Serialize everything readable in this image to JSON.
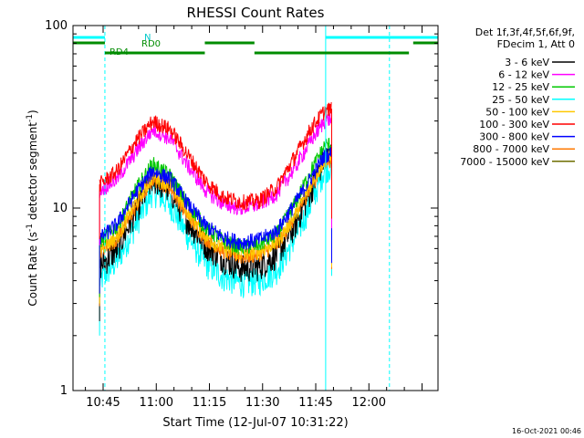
{
  "chart_data": {
    "type": "line",
    "title": "RHESSI Count Rates",
    "xlabel": "Start Time (12-Jul-07 10:31:22)",
    "ylabel_main": "Count Rate (s",
    "ylabel_sup": "-1",
    "ylabel_tail": " detector segment",
    "ylabel_sup2": "-1",
    "ylabel_end": ")",
    "y_scale": "log",
    "ylim": [
      1,
      100
    ],
    "xlim_minutes": [
      -8.5,
      94.5
    ],
    "x_ticks": [
      {
        "label": "10:45",
        "minute": 0
      },
      {
        "label": "11:00",
        "minute": 15
      },
      {
        "label": "11:15",
        "minute": 30
      },
      {
        "label": "11:30",
        "minute": 45
      },
      {
        "label": "11:45",
        "minute": 60
      },
      {
        "label": "12:00",
        "minute": 75
      }
    ],
    "y_ticks": [
      {
        "label": "1",
        "value": 1
      },
      {
        "label": "10",
        "value": 10
      },
      {
        "label": "100",
        "value": 100
      }
    ],
    "legend_header": [
      "Det 1f,3f,4f,5f,6f,9f,",
      "FDecim 1, Att 0"
    ],
    "legend_position": "right",
    "series": [
      {
        "name": "3 - 6 keV",
        "color": "#000000",
        "x": [
          -1.0,
          4.0,
          9.0,
          14.0,
          19.0,
          24.0,
          29.0,
          34.0,
          39.0,
          44.0,
          49.0,
          54.0,
          59.0,
          62.5,
          64.5
        ],
        "values": [
          4.8,
          6.0,
          9.5,
          14.5,
          12.5,
          8.5,
          6.3,
          5.3,
          4.7,
          4.8,
          5.6,
          8.0,
          13.0,
          19.0,
          19.5
        ]
      },
      {
        "name": "6 - 12 keV",
        "color": "#ff00ff",
        "x": [
          -1.0,
          4.0,
          9.0,
          14.0,
          19.0,
          24.0,
          29.0,
          34.0,
          39.0,
          44.0,
          49.0,
          54.0,
          59.0,
          62.5,
          64.5
        ],
        "values": [
          12.5,
          14.5,
          20.0,
          27.0,
          24.0,
          17.0,
          12.5,
          10.5,
          10.0,
          10.5,
          12.0,
          16.5,
          24.0,
          30.0,
          31.0
        ]
      },
      {
        "name": "12 - 25 keV",
        "color": "#00c800",
        "x": [
          -1.0,
          4.0,
          9.0,
          14.0,
          19.0,
          24.0,
          29.0,
          34.0,
          39.0,
          44.0,
          49.0,
          54.0,
          59.0,
          62.5,
          64.5
        ],
        "values": [
          6.5,
          8.0,
          12.5,
          17.5,
          15.0,
          10.5,
          7.8,
          6.6,
          6.1,
          6.3,
          7.2,
          10.5,
          16.5,
          22.0,
          22.5
        ]
      },
      {
        "name": "25 - 50 keV",
        "color": "#00ffff",
        "x": [
          -1.0,
          4.0,
          9.0,
          14.0,
          19.0,
          24.0,
          29.0,
          34.0,
          39.0,
          44.0,
          49.0,
          54.0,
          59.0,
          62.5,
          64.5
        ],
        "values": [
          4.0,
          5.2,
          8.0,
          12.5,
          10.5,
          7.0,
          5.0,
          4.2,
          3.9,
          4.0,
          4.6,
          6.8,
          11.0,
          16.5,
          17.0
        ]
      },
      {
        "name": "50 - 100 keV",
        "color": "#ffc800",
        "x": [
          -1.0,
          4.0,
          9.0,
          14.0,
          19.0,
          24.0,
          29.0,
          34.0,
          39.0,
          44.0,
          49.0,
          54.0,
          59.0,
          62.5,
          64.5
        ],
        "values": [
          6.0,
          7.0,
          10.5,
          15.0,
          13.5,
          9.5,
          7.0,
          6.0,
          5.6,
          5.8,
          6.5,
          9.0,
          14.0,
          18.5,
          19.0
        ]
      },
      {
        "name": "100 - 300 keV",
        "color": "#ff0000",
        "x": [
          -1.0,
          4.0,
          9.0,
          14.0,
          19.0,
          24.0,
          29.0,
          34.0,
          39.0,
          44.0,
          49.0,
          54.0,
          59.0,
          62.5,
          64.5
        ],
        "values": [
          13.5,
          16.0,
          23.0,
          30.0,
          27.0,
          19.5,
          14.0,
          11.5,
          10.8,
          11.0,
          13.0,
          19.0,
          28.0,
          34.0,
          35.0
        ]
      },
      {
        "name": "300 - 800 keV",
        "color": "#0000ff",
        "x": [
          -1.0,
          4.0,
          9.0,
          14.0,
          19.0,
          24.0,
          29.0,
          34.0,
          39.0,
          44.0,
          49.0,
          54.0,
          59.0,
          62.5,
          64.5
        ],
        "values": [
          6.8,
          8.2,
          12.0,
          16.0,
          14.5,
          10.5,
          8.0,
          6.9,
          6.5,
          6.7,
          7.5,
          10.5,
          15.0,
          19.5,
          20.0
        ]
      },
      {
        "name": "800 - 7000 keV",
        "color": "#ff7800",
        "x": [
          -1.0,
          4.0,
          9.0,
          14.0,
          19.0,
          24.0,
          29.0,
          34.0,
          39.0,
          44.0,
          49.0,
          54.0,
          59.0,
          62.5,
          64.5
        ],
        "values": [
          5.8,
          6.8,
          10.0,
          14.5,
          13.0,
          9.0,
          6.8,
          5.8,
          5.4,
          5.6,
          6.3,
          8.8,
          13.5,
          18.0,
          18.5
        ]
      },
      {
        "name": "7000 - 15000 keV",
        "color": "#6e6e00",
        "x": [
          -1.0,
          4.0,
          9.0,
          14.0,
          19.0,
          24.0,
          29.0,
          34.0,
          39.0,
          44.0,
          49.0,
          54.0,
          59.0,
          62.5,
          64.5
        ],
        "values": [
          5.8,
          6.8,
          10.0,
          14.5,
          13.0,
          9.0,
          6.8,
          5.8,
          5.4,
          5.6,
          6.3,
          8.8,
          13.5,
          18.0,
          18.5
        ]
      }
    ],
    "status_bars": [
      {
        "label": "N",
        "color": "#00ffff",
        "segments": [
          [
            -8.5,
            0.5
          ],
          [
            62.8,
            94.5
          ]
        ]
      },
      {
        "label": "RD0",
        "color": "#008c00",
        "segments": [
          [
            -8.5,
            0.5
          ],
          [
            28.7,
            42.7
          ],
          [
            87.5,
            94.5
          ]
        ]
      },
      {
        "label": "RD4",
        "color": "#008c00",
        "segments": [
          [
            0.5,
            28.7
          ],
          [
            42.7,
            86.3
          ]
        ]
      }
    ],
    "vertical_markers": [
      {
        "minute": 0.5,
        "style": "dashed",
        "color": "#00ffff"
      },
      {
        "minute": 62.8,
        "style": "solid",
        "color": "#00ffff"
      },
      {
        "minute": 80.8,
        "style": "dashed",
        "color": "#00ffff"
      }
    ],
    "data_start_minute": -1.0,
    "data_end_minute": 64.5
  },
  "footer": {
    "timestamp": "16-Oct-2021 00:46"
  }
}
